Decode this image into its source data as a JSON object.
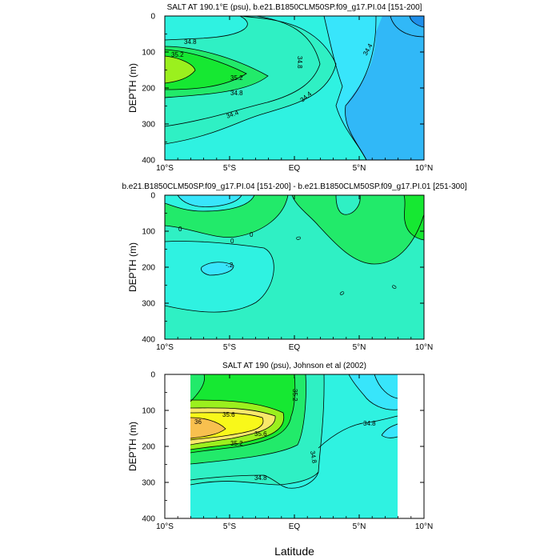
{
  "colors": {
    "deep_blue": "#1f8fea",
    "blue": "#31b8f7",
    "cyan": "#38e5fb",
    "aqua": "#2ff2e1",
    "teal": "#2ff0c4",
    "green": "#22ea6a",
    "bright_green": "#16e832",
    "lime": "#9bf01e",
    "yellow": "#f8f81a",
    "light_yellow": "#f9e86a",
    "orange": "#f8c04f"
  },
  "chart_data": [
    {
      "type": "contour",
      "title": "SALT AT 190.1°E (psu), b.e21.B1850CLM50SP.f09_g17.PI.04 [151-200]",
      "xlabel": "",
      "ylabel": "DEPTH (m)",
      "x_ticks": [
        "10°S",
        "5°S",
        "EQ",
        "5°N",
        "10°N"
      ],
      "y_ticks": [
        "0",
        "100",
        "200",
        "300",
        "400"
      ],
      "x_range_deg": [
        -10,
        10
      ],
      "y_range": [
        0,
        400
      ],
      "y_reversed": true,
      "contour_labels": [
        "34.8",
        "35.2",
        "35.2",
        "34.8",
        "34.8",
        "34.4",
        "34.4",
        "34.4"
      ]
    },
    {
      "type": "contour",
      "title": "b.e21.B1850CLM50SP.f09_g17.PI.04 [151-200] - b.e21.B1850CLM50SP.f09_g17.PI.01 [251-300]",
      "xlabel": "",
      "ylabel": "DEPTH (m)",
      "x_ticks": [
        "10°S",
        "5°S",
        "EQ",
        "5°N",
        "10°N"
      ],
      "y_ticks": [
        "0",
        "100",
        "200",
        "300",
        "400"
      ],
      "x_range_deg": [
        -10,
        10
      ],
      "y_range": [
        0,
        400
      ],
      "y_reversed": true,
      "contour_labels": [
        "0",
        "0",
        "0",
        "0",
        "-.2",
        "0",
        "0"
      ]
    },
    {
      "type": "contour",
      "title": "SALT AT 190 (psu), Johnson et al (2002)",
      "xlabel": "Latitude",
      "ylabel": "DEPTH (m)",
      "x_ticks": [
        "10°S",
        "5°S",
        "EQ",
        "5°N",
        "10°N"
      ],
      "y_ticks": [
        "0",
        "100",
        "200",
        "300",
        "400"
      ],
      "x_range_deg": [
        -10,
        10
      ],
      "y_range": [
        0,
        400
      ],
      "y_reversed": true,
      "contour_labels": [
        "35.2",
        "35.6",
        "36",
        "35.6",
        "35.2",
        "34.8",
        "34.8",
        "34.8"
      ]
    }
  ]
}
